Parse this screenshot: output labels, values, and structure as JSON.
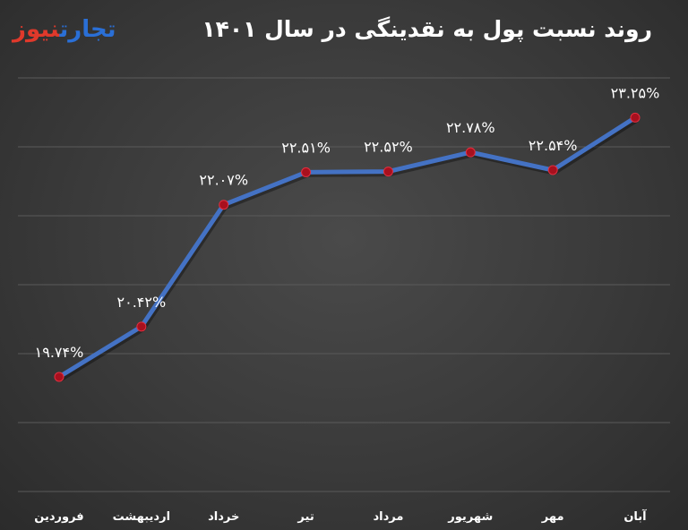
{
  "header": {
    "title": "روند نسبت پول به نقدینگی در سال ۱۴۰۱",
    "logo_part_a": "تجارت",
    "logo_part_b": "نیوز"
  },
  "colors": {
    "line": "#4472c4",
    "marker": "#a8101e",
    "grid": "#5a5a5a",
    "text": "#ffffff",
    "logo_blue": "#2a6fd6",
    "logo_red": "#e0392b"
  },
  "chart_data": {
    "type": "line",
    "title": "روند نسبت پول به نقدینگی در سال ۱۴۰۱",
    "categories": [
      "فروردین",
      "اردیبهشت",
      "خرداد",
      "تیر",
      "مرداد",
      "شهریور",
      "مهر",
      "آبان"
    ],
    "values": [
      19.74,
      20.42,
      22.07,
      22.51,
      22.52,
      22.78,
      22.54,
      23.25
    ],
    "data_labels": [
      "۱۹.۷۴%",
      "۲۰.۴۲%",
      "۲۲.۰۷%",
      "۲۲.۵۱%",
      "۲۲.۵۲%",
      "۲۲.۷۸%",
      "۲۲.۵۴%",
      "۲۳.۲۵%"
    ],
    "ylim": [
      18.2,
      23.8
    ],
    "grid": true,
    "legend": "none",
    "xlabel": "",
    "ylabel": ""
  }
}
